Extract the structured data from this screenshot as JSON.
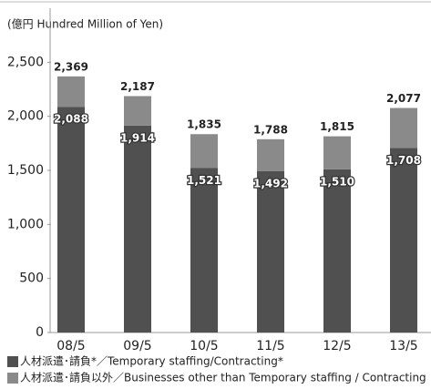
{
  "chart_data": {
    "type": "stacked-bar",
    "title": "(億円 Hundred Million of Yen)",
    "categories": [
      "08/5",
      "09/5",
      "10/5",
      "11/5",
      "12/5",
      "13/5"
    ],
    "series": [
      {
        "name": "人材派遣･請負*／Temporary staffing/Contracting*",
        "color": "#505050",
        "values": [
          2088,
          1914,
          1521,
          1492,
          1510,
          1708
        ],
        "value_labels": [
          "2,088",
          "1,914",
          "1,521",
          "1,492",
          "1,510",
          "1,708"
        ]
      },
      {
        "name": "人材派遣･請負以外／Businesses other than Temporary staffing / Contracting",
        "color": "#8a8a8a",
        "values": [
          281,
          273,
          314,
          296,
          305,
          369
        ]
      }
    ],
    "totals": {
      "values": [
        2369,
        2187,
        1835,
        1788,
        1815,
        2077
      ],
      "value_labels": [
        "2,369",
        "2,187",
        "1,835",
        "1,788",
        "1,815",
        "2,077"
      ]
    },
    "ylim": [
      0,
      3000
    ],
    "yticks": [
      0,
      500,
      {
        "value": 1000,
        "label": "1,000"
      },
      {
        "value": 1500,
        "label": "1,500"
      },
      {
        "value": 2000,
        "label": "2,000"
      },
      {
        "value": 2500,
        "label": "2,500"
      }
    ]
  }
}
